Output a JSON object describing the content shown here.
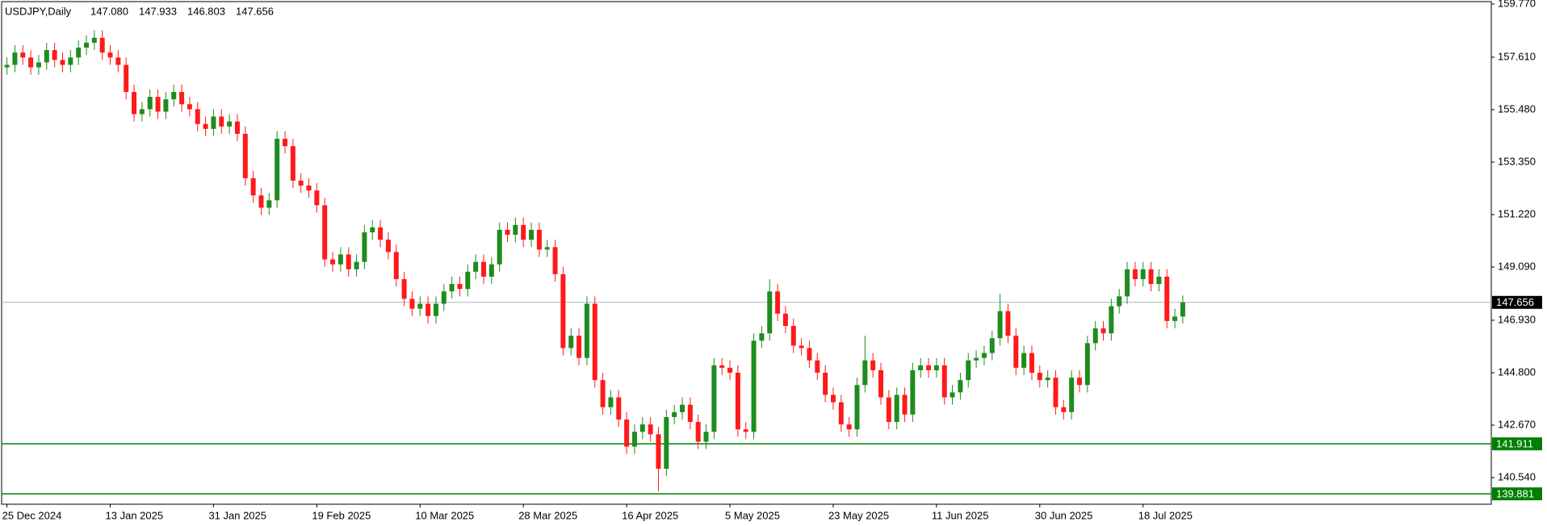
{
  "chart_data": {
    "type": "candlestick",
    "title": "USDJPY,Daily",
    "title_values": [
      "147.080",
      "147.933",
      "146.803",
      "147.656"
    ],
    "categories": [
      "25 Dec 2024",
      null,
      null,
      null,
      null,
      null,
      null,
      null,
      null,
      null,
      null,
      null,
      null,
      "13 Jan 2025",
      null,
      null,
      null,
      null,
      null,
      null,
      null,
      null,
      null,
      null,
      null,
      null,
      "31 Jan 2025",
      null,
      null,
      null,
      null,
      null,
      null,
      null,
      null,
      null,
      null,
      null,
      null,
      "19 Feb 2025",
      null,
      null,
      null,
      null,
      null,
      null,
      null,
      null,
      null,
      null,
      null,
      null,
      "10 Mar 2025",
      null,
      null,
      null,
      null,
      null,
      null,
      null,
      null,
      null,
      null,
      null,
      null,
      "28 Mar 2025",
      null,
      null,
      null,
      null,
      null,
      null,
      null,
      null,
      null,
      null,
      null,
      null,
      "16 Apr 2025",
      null,
      null,
      null,
      null,
      null,
      null,
      null,
      null,
      null,
      null,
      null,
      null,
      "5 May 2025",
      null,
      null,
      null,
      null,
      null,
      null,
      null,
      null,
      null,
      null,
      null,
      null,
      "23 May 2025",
      null,
      null,
      null,
      null,
      null,
      null,
      null,
      null,
      null,
      null,
      null,
      null,
      "11 Jun 2025",
      null,
      null,
      null,
      null,
      null,
      null,
      null,
      null,
      null,
      null,
      null,
      null,
      "30 Jun 2025",
      null,
      null,
      null,
      null,
      null,
      null,
      null,
      null,
      null,
      null,
      null,
      null,
      "18 Jul 2025",
      null,
      null,
      null,
      null,
      null
    ],
    "open": [
      157.2,
      157.3,
      157.8,
      157.6,
      157.2,
      157.4,
      157.9,
      157.5,
      157.3,
      157.6,
      158.0,
      158.2,
      158.4,
      157.8,
      157.6,
      157.3,
      156.2,
      155.3,
      155.5,
      156.0,
      155.4,
      155.9,
      156.2,
      155.7,
      155.5,
      154.9,
      154.7,
      155.2,
      154.8,
      155.0,
      154.5,
      152.7,
      152.0,
      151.5,
      151.8,
      154.3,
      154.0,
      152.6,
      152.4,
      152.2,
      151.6,
      149.4,
      149.2,
      149.6,
      149.0,
      149.3,
      150.5,
      150.7,
      150.2,
      149.7,
      148.6,
      147.8,
      147.4,
      147.6,
      147.1,
      147.6,
      148.1,
      148.4,
      148.2,
      148.9,
      149.3,
      148.7,
      149.2,
      150.6,
      150.4,
      150.8,
      150.2,
      150.6,
      149.8,
      149.9,
      148.8,
      145.8,
      146.3,
      145.4,
      147.6,
      144.5,
      143.4,
      143.8,
      142.9,
      141.8,
      142.4,
      142.7,
      142.3,
      140.9,
      143.0,
      143.2,
      143.5,
      142.8,
      142.0,
      142.4,
      145.1,
      145.0,
      144.8,
      142.5,
      142.4,
      146.1,
      146.4,
      148.1,
      147.2,
      146.7,
      145.9,
      145.8,
      145.3,
      144.8,
      143.9,
      143.6,
      142.7,
      142.5,
      144.3,
      145.3,
      144.9,
      143.8,
      142.8,
      143.9,
      143.1,
      144.9,
      145.1,
      144.9,
      145.1,
      143.8,
      144.0,
      144.5,
      145.3,
      145.4,
      145.6,
      146.2,
      147.3,
      146.3,
      145.0,
      145.6,
      144.8,
      144.5,
      144.6,
      143.4,
      143.2,
      144.6,
      144.3,
      146.0,
      146.6,
      146.4,
      147.5,
      147.9,
      149.0,
      148.6,
      149.0,
      148.4,
      148.7,
      146.9,
      147.08
    ],
    "high": [
      157.6,
      158.1,
      158.1,
      157.9,
      157.7,
      158.2,
      158.2,
      157.8,
      157.9,
      158.3,
      158.5,
      158.7,
      158.7,
      158.1,
      157.9,
      157.6,
      156.5,
      155.8,
      156.3,
      156.3,
      156.2,
      156.5,
      156.5,
      156.0,
      155.8,
      155.2,
      155.5,
      155.5,
      155.3,
      155.3,
      154.8,
      153.0,
      152.3,
      152.1,
      154.6,
      154.6,
      154.3,
      152.9,
      152.7,
      152.5,
      151.9,
      149.7,
      149.9,
      149.9,
      149.6,
      150.8,
      151.0,
      151.0,
      150.5,
      150.0,
      148.9,
      148.1,
      147.9,
      147.9,
      147.9,
      148.4,
      148.7,
      148.7,
      149.2,
      149.6,
      149.6,
      149.5,
      150.9,
      150.9,
      151.1,
      151.1,
      150.9,
      150.9,
      150.2,
      150.2,
      149.1,
      146.6,
      146.6,
      147.9,
      147.9,
      144.8,
      144.1,
      144.1,
      143.2,
      142.7,
      143.0,
      143.0,
      142.6,
      143.3,
      143.5,
      143.8,
      143.8,
      143.1,
      142.7,
      145.4,
      145.4,
      145.3,
      145.1,
      142.8,
      146.4,
      146.7,
      148.6,
      148.4,
      147.5,
      147.0,
      146.2,
      146.1,
      145.6,
      145.1,
      144.2,
      143.9,
      143.0,
      144.6,
      146.3,
      145.6,
      145.2,
      144.1,
      144.2,
      144.2,
      145.2,
      145.4,
      145.4,
      145.4,
      145.4,
      144.3,
      144.8,
      145.6,
      145.7,
      145.9,
      146.5,
      148.0,
      147.6,
      146.6,
      145.9,
      145.9,
      145.1,
      144.9,
      144.9,
      143.7,
      144.9,
      144.9,
      146.3,
      146.9,
      146.9,
      147.8,
      148.2,
      149.3,
      149.3,
      149.3,
      149.3,
      149.0,
      149.0,
      147.4,
      147.933
    ],
    "low": [
      156.9,
      157.0,
      157.3,
      156.9,
      156.9,
      157.1,
      157.2,
      157.0,
      157.0,
      157.3,
      157.7,
      157.9,
      157.5,
      157.3,
      157.0,
      155.9,
      155.0,
      155.0,
      155.2,
      155.1,
      155.1,
      155.6,
      155.4,
      155.2,
      154.6,
      154.4,
      154.4,
      154.5,
      154.5,
      154.2,
      152.4,
      151.7,
      151.2,
      151.2,
      151.5,
      153.7,
      152.3,
      152.1,
      151.9,
      151.3,
      149.1,
      148.9,
      148.9,
      148.7,
      148.7,
      149.0,
      150.2,
      149.9,
      149.4,
      148.3,
      147.5,
      147.1,
      147.1,
      146.8,
      146.8,
      147.3,
      147.8,
      147.9,
      147.9,
      148.6,
      148.4,
      148.4,
      148.9,
      150.1,
      150.1,
      149.9,
      149.9,
      149.5,
      149.5,
      148.5,
      145.5,
      145.5,
      145.1,
      145.1,
      144.2,
      143.1,
      143.1,
      142.6,
      141.5,
      141.5,
      142.1,
      142.0,
      139.98,
      140.6,
      142.7,
      142.9,
      142.5,
      141.7,
      141.7,
      142.1,
      144.7,
      144.5,
      142.2,
      142.1,
      142.1,
      145.8,
      146.1,
      146.9,
      146.4,
      145.6,
      145.5,
      145.0,
      144.5,
      143.6,
      143.3,
      142.4,
      142.2,
      142.2,
      144.0,
      144.6,
      143.5,
      142.5,
      142.5,
      142.8,
      142.8,
      144.6,
      144.6,
      144.6,
      143.5,
      143.5,
      143.7,
      144.2,
      145.0,
      145.1,
      145.3,
      145.9,
      146.0,
      144.7,
      144.7,
      144.5,
      144.2,
      144.2,
      143.1,
      142.9,
      142.9,
      144.0,
      144.0,
      145.7,
      146.1,
      146.1,
      147.2,
      147.6,
      148.3,
      148.3,
      148.1,
      148.1,
      146.6,
      146.6,
      146.803
    ],
    "close": [
      157.3,
      157.8,
      157.6,
      157.2,
      157.4,
      157.9,
      157.5,
      157.3,
      157.6,
      158.0,
      158.2,
      158.4,
      157.8,
      157.6,
      157.3,
      156.2,
      155.3,
      155.5,
      156.0,
      155.4,
      155.9,
      156.2,
      155.7,
      155.5,
      154.9,
      154.7,
      155.2,
      154.8,
      155.0,
      154.5,
      152.7,
      152.0,
      151.5,
      151.8,
      154.3,
      154.0,
      152.6,
      152.4,
      152.2,
      151.6,
      149.4,
      149.2,
      149.6,
      149.0,
      149.3,
      150.5,
      150.7,
      150.2,
      149.7,
      148.6,
      147.8,
      147.4,
      147.6,
      147.1,
      147.6,
      148.1,
      148.4,
      148.2,
      148.9,
      149.3,
      148.7,
      149.2,
      150.6,
      150.4,
      150.8,
      150.2,
      150.6,
      149.8,
      149.9,
      148.8,
      145.8,
      146.3,
      145.4,
      147.6,
      144.5,
      143.4,
      143.8,
      142.9,
      141.8,
      142.4,
      142.7,
      142.3,
      140.9,
      143.0,
      143.2,
      143.5,
      142.8,
      142.0,
      142.4,
      145.1,
      145.0,
      144.8,
      142.5,
      142.4,
      146.1,
      146.4,
      148.1,
      147.2,
      146.7,
      145.9,
      145.8,
      145.3,
      144.8,
      143.9,
      143.6,
      142.7,
      142.5,
      144.3,
      145.3,
      144.9,
      143.8,
      142.8,
      143.9,
      143.1,
      144.9,
      145.1,
      144.9,
      145.1,
      143.8,
      144.0,
      144.5,
      145.3,
      145.4,
      145.6,
      146.2,
      147.3,
      146.3,
      145.0,
      145.6,
      144.8,
      144.5,
      144.6,
      143.4,
      143.2,
      144.6,
      144.3,
      146.0,
      146.6,
      146.4,
      147.5,
      147.9,
      149.0,
      148.6,
      149.0,
      148.4,
      148.7,
      146.9,
      147.08,
      147.656
    ],
    "up_color": "#1e8c1e",
    "down_color": "#ff1a1a",
    "ylim": [
      139.46,
      159.77
    ],
    "yticks": [
      {
        "value": 159.77,
        "label": "159.770"
      },
      {
        "value": 157.61,
        "label": "157.610"
      },
      {
        "value": 155.48,
        "label": "155.480"
      },
      {
        "value": 153.35,
        "label": "153.350"
      },
      {
        "value": 151.22,
        "label": "151.220"
      },
      {
        "value": 149.09,
        "label": "149.090"
      },
      {
        "value": 146.93,
        "label": "146.930"
      },
      {
        "value": 144.8,
        "label": "144.800"
      },
      {
        "value": 142.67,
        "label": "142.670"
      },
      {
        "value": 140.54,
        "label": "140.540"
      }
    ],
    "hlines": [
      {
        "value": 147.656,
        "color": "#aab8c2",
        "label_color": "#000000"
      },
      {
        "value": 141.911,
        "color": "#008000",
        "label_color": "#008000"
      },
      {
        "value": 139.881,
        "color": "#008000",
        "label_color": "#008000"
      }
    ]
  }
}
